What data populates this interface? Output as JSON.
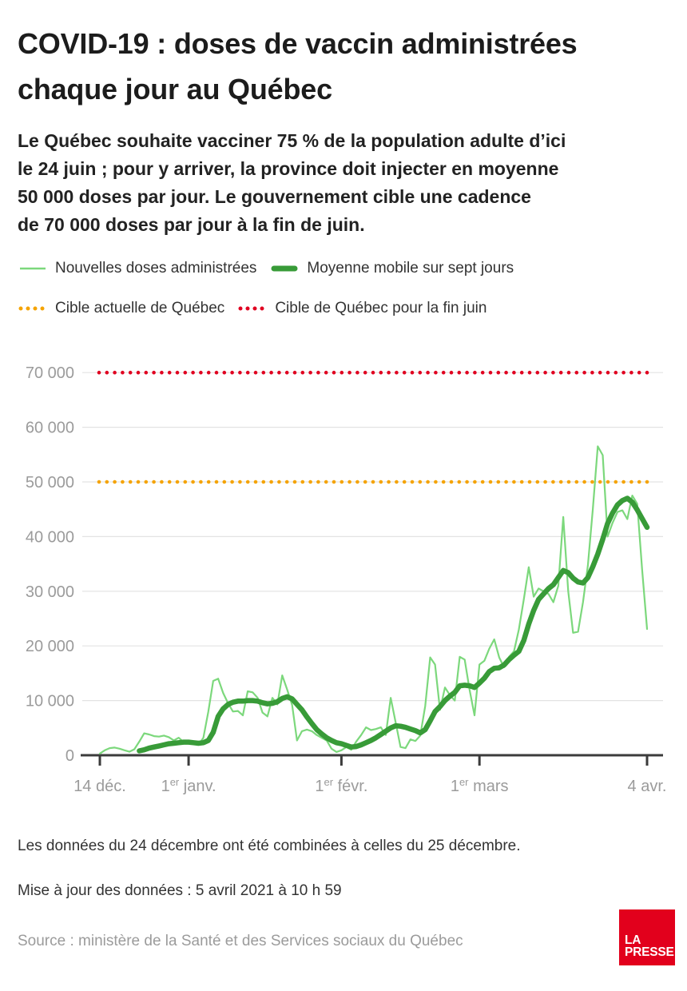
{
  "header": {
    "title_lines": [
      "COVID-19 : doses de vaccin administrées",
      "chaque jour au Québec"
    ],
    "subtitle_lines": [
      "Le Québec souhaite vacciner 75 % de la population adulte d’ici",
      "le 24 juin ; pour y arriver, la province doit injecter en moyenne",
      "50 000 doses par jour. Le gouvernement cible une cadence",
      "de 70 000 doses par jour à la fin de juin."
    ]
  },
  "legend": [
    {
      "label": "Nouvelles doses administrées",
      "swatch": "thin-line",
      "color": "#7cd87c"
    },
    {
      "label": "Moyenne mobile sur sept jours",
      "swatch": "thick-line",
      "color": "#389b38"
    },
    {
      "label": "Cible actuelle de Québec",
      "swatch": "dotted",
      "color": "#f5a300"
    },
    {
      "label": "Cible de Québec pour la fin juin",
      "swatch": "dotted",
      "color": "#e00020"
    }
  ],
  "chart_data": {
    "type": "line",
    "x_unit": "day",
    "x_range_days": 111,
    "x_ticks": [
      {
        "day_index": 0,
        "pre": "14",
        "sup": "",
        "post": " déc."
      },
      {
        "day_index": 18,
        "pre": "1",
        "sup": "er",
        "post": " janv."
      },
      {
        "day_index": 49,
        "pre": "1",
        "sup": "er",
        "post": " févr."
      },
      {
        "day_index": 77,
        "pre": "1",
        "sup": "er",
        "post": " mars"
      },
      {
        "day_index": 111,
        "pre": "4",
        "sup": "",
        "post": " avr."
      }
    ],
    "ylim": [
      0,
      73000
    ],
    "y_ticks": [
      {
        "value": 0,
        "label": "0"
      },
      {
        "value": 10000,
        "label": "10 000"
      },
      {
        "value": 20000,
        "label": "20 000"
      },
      {
        "value": 30000,
        "label": "30 000"
      },
      {
        "value": 40000,
        "label": "40 000"
      },
      {
        "value": 50000,
        "label": "50 000"
      },
      {
        "value": 60000,
        "label": "60 000"
      },
      {
        "value": 70000,
        "label": "70 000"
      }
    ],
    "grid": true,
    "grid_color": "#e3e3e3",
    "axis_color": "#3b3b3b",
    "tick_label_color": "#9b9b9b",
    "legend_position": "top",
    "series": [
      {
        "name": "Nouvelles doses administrées",
        "color": "#7cd87c",
        "stroke_width": 2.2,
        "start_day_index": 0,
        "values": [
          300,
          900,
          1300,
          1400,
          1200,
          900,
          650,
          1100,
          2500,
          4000,
          3800,
          3500,
          3400,
          3600,
          3300,
          2700,
          3200,
          2400,
          2300,
          2200,
          1900,
          3200,
          8000,
          13600,
          14000,
          11400,
          9500,
          8000,
          8100,
          7300,
          11700,
          11500,
          10500,
          7800,
          7100,
          10500,
          9300,
          14600,
          12000,
          9200,
          2700,
          4400,
          4700,
          4400,
          3700,
          3200,
          2700,
          1200,
          600,
          900,
          1500,
          1000,
          2500,
          3700,
          5100,
          4600,
          4800,
          5100,
          3700,
          10500,
          6000,
          1500,
          1300,
          2900,
          2600,
          3600,
          9000,
          17900,
          16600,
          8300,
          12400,
          11000,
          10000,
          18000,
          17500,
          12000,
          7300,
          16600,
          17300,
          19500,
          21200,
          17900,
          16100,
          18000,
          19000,
          23000,
          28500,
          34400,
          29000,
          30500,
          30000,
          29500,
          28000,
          31000,
          43600,
          30000,
          22400,
          22600,
          28000,
          34700,
          45000,
          56500,
          54900,
          40000,
          42500,
          44500,
          44800,
          43200,
          47500,
          46000,
          34000,
          23100
        ]
      },
      {
        "name": "Moyenne mobile sur sept jours",
        "color": "#389b38",
        "stroke_width": 6.5,
        "start_day_index": 8,
        "values": [
          800,
          1000,
          1300,
          1500,
          1700,
          1900,
          2100,
          2200,
          2300,
          2400,
          2400,
          2300,
          2200,
          2300,
          2700,
          4200,
          7100,
          8500,
          9300,
          9700,
          9900,
          9900,
          10000,
          10000,
          9900,
          9600,
          9400,
          9500,
          9800,
          10400,
          10700,
          10300,
          9300,
          8300,
          7000,
          5800,
          4700,
          3900,
          3200,
          2700,
          2300,
          2100,
          1800,
          1500,
          1600,
          1900,
          2300,
          2700,
          3200,
          3800,
          4400,
          5000,
          5400,
          5300,
          5100,
          4800,
          4500,
          4100,
          4700,
          6300,
          8000,
          8900,
          10000,
          10800,
          11500,
          12700,
          12800,
          12700,
          12400,
          13200,
          14100,
          15300,
          15900,
          16000,
          16500,
          17500,
          18300,
          19000,
          21000,
          24000,
          26500,
          28500,
          29500,
          30500,
          31200,
          32500,
          33800,
          33400,
          32400,
          31700,
          31500,
          32500,
          34500,
          36800,
          39500,
          42400,
          44300,
          45800,
          46600,
          47000,
          46300,
          44900,
          43300,
          41700
        ]
      }
    ],
    "reference_lines": [
      {
        "name": "Cible actuelle de Québec",
        "value": 50000,
        "color": "#f5a300"
      },
      {
        "name": "Cible de Québec pour la fin juin",
        "value": 70000,
        "color": "#e00020"
      }
    ]
  },
  "footer": {
    "note": "Les données du 24 décembre ont été combinées à celles du 25 décembre.",
    "updated": "Mise à jour des données : 5 avril 2021 à 10 h 59",
    "source": "Source : ministère de la Santé et des Services sociaux du Québec"
  },
  "logo": {
    "text_lines": [
      "LA",
      "PRESSE"
    ],
    "background": "#e2001c"
  }
}
